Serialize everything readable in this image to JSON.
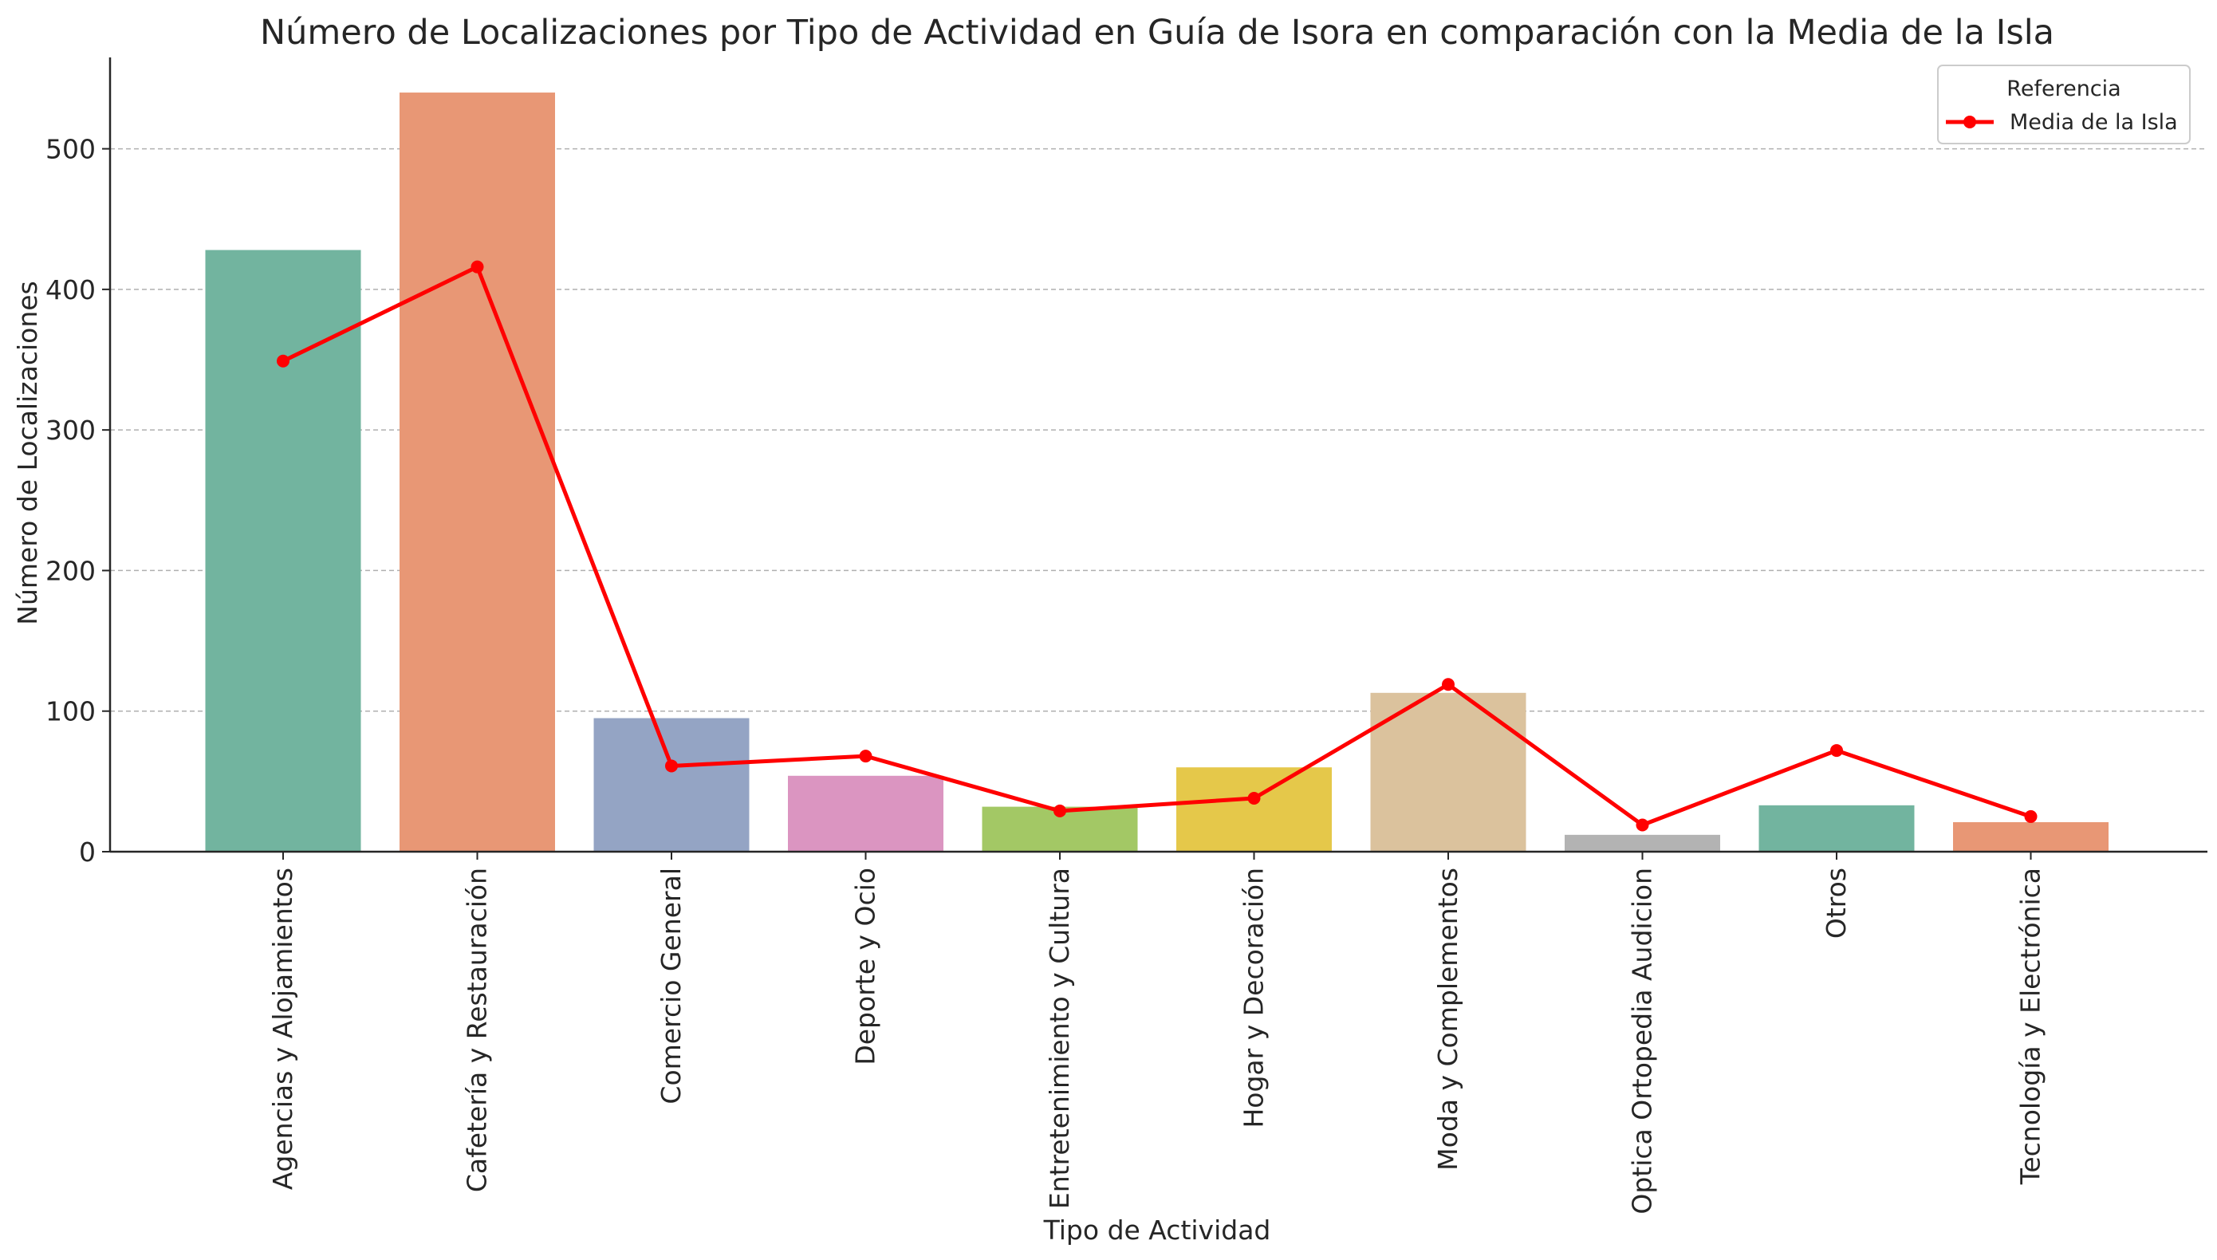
{
  "chart_data": {
    "type": "bar",
    "title": "Número de Localizaciones por Tipo de Actividad en Guía de Isora en comparación con la Media de la Isla",
    "xlabel": "Tipo de Actividad",
    "ylabel": "Número de Localizaciones",
    "categories": [
      "Agencias y Alojamientos",
      "Cafetería y Restauración",
      "Comercio General",
      "Deporte y Ocio",
      "Entretenimiento y Cultura",
      "Hogar y Decoración",
      "Moda y Complementos",
      "Optica Ortopedia Audicion",
      "Otros",
      "Tecnología y Electrónica"
    ],
    "values": [
      428,
      540,
      95,
      54,
      32,
      60,
      113,
      12,
      33,
      21
    ],
    "bar_colors": [
      "#72b49f",
      "#e89775",
      "#94a4c4",
      "#db95c1",
      "#a3c865",
      "#e5c84a",
      "#dbc29d",
      "#b3b3b3",
      "#72b49f",
      "#e89775"
    ],
    "series": [
      {
        "name": "Media de la Isla",
        "type": "line",
        "color": "#ff0000",
        "values": [
          349,
          416,
          61,
          68,
          29,
          38,
          119,
          19,
          72,
          25
        ]
      }
    ],
    "ylim": [
      0,
      565
    ],
    "yticks": [
      0,
      100,
      200,
      300,
      400,
      500
    ],
    "grid": "horizontal dashed",
    "legend": {
      "title": "Referencia",
      "placement": "top-right"
    }
  }
}
